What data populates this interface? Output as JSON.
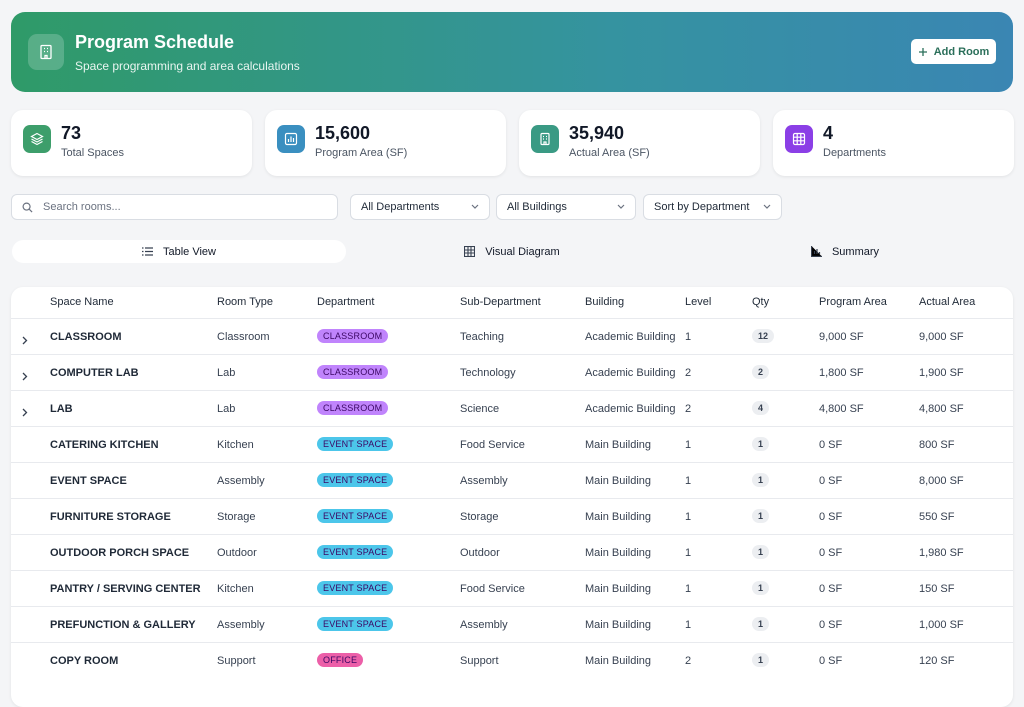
{
  "header": {
    "title": "Program Schedule",
    "subtitle": "Space programming and area calculations",
    "action": "Add Room"
  },
  "stats": [
    {
      "value": "73",
      "label": "Total Spaces",
      "color": "#3d9e6b"
    },
    {
      "value": "15,600",
      "label": "Program Area (SF)",
      "color": "#3a8fc0"
    },
    {
      "value": "35,940",
      "label": "Actual Area (SF)",
      "color": "#3a9a84"
    },
    {
      "value": "4",
      "label": "Departments",
      "color": "#8b3fe6"
    }
  ],
  "filters": {
    "search_placeholder": "Search rooms...",
    "department": "All Departments",
    "building": "All Buildings",
    "sort": "Sort by Department"
  },
  "tabs": [
    "Table View",
    "Visual Diagram",
    "Summary"
  ],
  "table": {
    "columns": [
      "Space Name",
      "Room Type",
      "Department",
      "Sub-Department",
      "Building",
      "Level",
      "Qty",
      "Program Area",
      "Actual Area"
    ],
    "rows": [
      {
        "expandable": true,
        "department_color": "#c084fc",
        "cells": [
          "CLASSROOM",
          "Classroom",
          "CLASSROOM",
          "Teaching",
          "Academic Building",
          "1",
          "12",
          "9,000 SF",
          "9,000 SF"
        ]
      },
      {
        "expandable": true,
        "department_color": "#c084fc",
        "cells": [
          "COMPUTER LAB",
          "Lab",
          "CLASSROOM",
          "Technology",
          "Academic Building",
          "2",
          "2",
          "1,800 SF",
          "1,900 SF"
        ]
      },
      {
        "expandable": true,
        "department_color": "#c084fc",
        "cells": [
          "LAB",
          "Lab",
          "CLASSROOM",
          "Science",
          "Academic Building",
          "2",
          "4",
          "4,800 SF",
          "4,800 SF"
        ]
      },
      {
        "expandable": false,
        "department_color": "#4cc6ea",
        "cells": [
          "CATERING KITCHEN",
          "Kitchen",
          "EVENT SPACE",
          "Food Service",
          "Main Building",
          "1",
          "1",
          "0 SF",
          "800 SF"
        ]
      },
      {
        "expandable": false,
        "department_color": "#4cc6ea",
        "cells": [
          "EVENT SPACE",
          "Assembly",
          "EVENT SPACE",
          "Assembly",
          "Main Building",
          "1",
          "1",
          "0 SF",
          "8,000 SF"
        ]
      },
      {
        "expandable": false,
        "department_color": "#4cc6ea",
        "cells": [
          "FURNITURE STORAGE",
          "Storage",
          "EVENT SPACE",
          "Storage",
          "Main Building",
          "1",
          "1",
          "0 SF",
          "550 SF"
        ]
      },
      {
        "expandable": false,
        "department_color": "#4cc6ea",
        "cells": [
          "OUTDOOR PORCH SPACE",
          "Outdoor",
          "EVENT SPACE",
          "Outdoor",
          "Main Building",
          "1",
          "1",
          "0 SF",
          "1,980 SF"
        ]
      },
      {
        "expandable": false,
        "department_color": "#4cc6ea",
        "cells": [
          "PANTRY / SERVING CENTER",
          "Kitchen",
          "EVENT SPACE",
          "Food Service",
          "Main Building",
          "1",
          "1",
          "0 SF",
          "150 SF"
        ]
      },
      {
        "expandable": false,
        "department_color": "#4cc6ea",
        "cells": [
          "PREFUNCTION & GALLERY",
          "Assembly",
          "EVENT SPACE",
          "Assembly",
          "Main Building",
          "1",
          "1",
          "0 SF",
          "1,000 SF"
        ]
      },
      {
        "expandable": false,
        "department_color": "#ec5fa8",
        "cells": [
          "COPY ROOM",
          "Support",
          "OFFICE",
          "Support",
          "Main Building",
          "2",
          "1",
          "0 SF",
          "120 SF"
        ]
      }
    ]
  }
}
